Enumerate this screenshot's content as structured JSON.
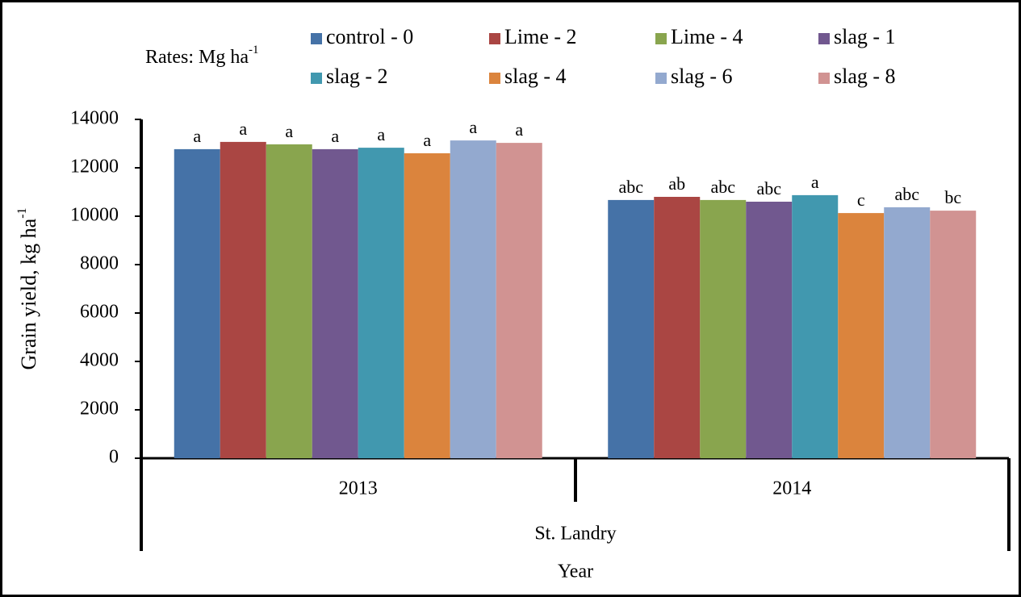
{
  "chart_data": {
    "type": "bar",
    "legend_title": {
      "text": "Rates: Mg ha",
      "sup": "-1"
    },
    "ylabel": {
      "text": "Grain yield, kg ha",
      "sup": "-1"
    },
    "xlabel": "Year",
    "group_label": "St. Landry",
    "categories": [
      "2013",
      "2014"
    ],
    "series": [
      {
        "name": "control - 0",
        "color": "#4572a7",
        "values": [
          12770,
          10670
        ],
        "letters": [
          "a",
          "abc"
        ]
      },
      {
        "name": "Lime - 2",
        "color": "#aa4643",
        "values": [
          13070,
          10800
        ],
        "letters": [
          "a",
          "ab"
        ]
      },
      {
        "name": "Lime - 4",
        "color": "#89a54e",
        "values": [
          12970,
          10670
        ],
        "letters": [
          "a",
          "abc"
        ]
      },
      {
        "name": "slag - 1",
        "color": "#71588f",
        "values": [
          12770,
          10600
        ],
        "letters": [
          "a",
          "abc"
        ]
      },
      {
        "name": "slag - 2",
        "color": "#4198af",
        "values": [
          12830,
          10870
        ],
        "letters": [
          "a",
          "a"
        ]
      },
      {
        "name": "slag - 4",
        "color": "#db843d",
        "values": [
          12600,
          10130
        ],
        "letters": [
          "a",
          "c"
        ]
      },
      {
        "name": "slag - 6",
        "color": "#93a9cf",
        "values": [
          13130,
          10370
        ],
        "letters": [
          "a",
          "abc"
        ]
      },
      {
        "name": "slag - 8",
        "color": "#d19392",
        "values": [
          13030,
          10230
        ],
        "letters": [
          "a",
          "bc"
        ]
      }
    ],
    "ylim": [
      0,
      14000
    ],
    "yticks": [
      0,
      2000,
      4000,
      6000,
      8000,
      10000,
      12000,
      14000
    ]
  }
}
